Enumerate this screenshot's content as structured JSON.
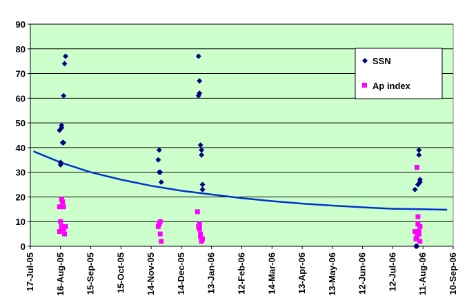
{
  "chart_data": {
    "type": "scatter",
    "title": "",
    "xlabel": "",
    "ylabel": "",
    "xlim": [
      "2005-07-17",
      "2006-09-10"
    ],
    "ylim": [
      0,
      90
    ],
    "y_ticks": [
      0,
      10,
      20,
      30,
      40,
      50,
      60,
      70,
      80,
      90
    ],
    "x_ticks": [
      "2005-07-17",
      "2005-08-16",
      "2005-09-15",
      "2005-10-15",
      "2005-11-14",
      "2005-12-14",
      "2006-01-13",
      "2006-02-12",
      "2006-03-14",
      "2006-04-13",
      "2006-05-13",
      "2006-06-12",
      "2006-07-12",
      "2006-08-11",
      "2006-09-10"
    ],
    "x_tick_labels": [
      "17-Jul-05",
      "16-Aug-05",
      "15-Sep-05",
      "15-Oct-05",
      "14-Nov-05",
      "14-Dec-05",
      "13-Jan-06",
      "12-Feb-06",
      "14-Mar-06",
      "13-Apr-06",
      "13-May-06",
      "12-Jun-06",
      "12-Jul-06",
      "11-Aug-06",
      "10-Sep-06"
    ],
    "grid": true,
    "plot_background": "#ccffcc",
    "legend_position": "top-right",
    "series": [
      {
        "name": "SSN",
        "marker": "diamond",
        "color": "#000080",
        "points": [
          [
            "2005-08-15",
            47
          ],
          [
            "2005-08-16",
            33
          ],
          [
            "2005-08-16",
            34
          ],
          [
            "2005-08-17",
            49
          ],
          [
            "2005-08-17",
            48
          ],
          [
            "2005-08-18",
            42
          ],
          [
            "2005-08-19",
            42
          ],
          [
            "2005-08-19",
            61
          ],
          [
            "2005-08-20",
            74
          ],
          [
            "2005-08-21",
            77
          ],
          [
            "2005-11-21",
            35
          ],
          [
            "2005-11-22",
            30
          ],
          [
            "2005-11-22",
            39
          ],
          [
            "2005-11-23",
            30
          ],
          [
            "2005-11-24",
            26
          ],
          [
            "2005-12-31",
            77
          ],
          [
            "2005-12-31",
            61
          ],
          [
            "2006-01-01",
            67
          ],
          [
            "2006-01-01",
            62
          ],
          [
            "2006-01-02",
            41
          ],
          [
            "2006-01-03",
            37
          ],
          [
            "2006-01-03",
            39
          ],
          [
            "2006-01-04",
            25
          ],
          [
            "2006-01-04",
            23
          ],
          [
            "2006-08-03",
            23
          ],
          [
            "2006-08-04",
            0
          ],
          [
            "2006-08-05",
            0
          ],
          [
            "2006-08-06",
            25
          ],
          [
            "2006-08-07",
            37
          ],
          [
            "2006-08-07",
            39
          ],
          [
            "2006-08-08",
            27
          ],
          [
            "2006-08-08",
            26
          ]
        ]
      },
      {
        "name": "Ap index",
        "marker": "square",
        "color": "#ff00ff",
        "points": [
          [
            "2005-08-15",
            6
          ],
          [
            "2005-08-15",
            16
          ],
          [
            "2005-08-16",
            10
          ],
          [
            "2005-08-17",
            8
          ],
          [
            "2005-08-17",
            19
          ],
          [
            "2005-08-18",
            18
          ],
          [
            "2005-08-19",
            16
          ],
          [
            "2005-08-19",
            7
          ],
          [
            "2005-08-20",
            5
          ],
          [
            "2005-08-21",
            8
          ],
          [
            "2005-11-21",
            8
          ],
          [
            "2005-11-22",
            9
          ],
          [
            "2005-11-23",
            10
          ],
          [
            "2005-11-23",
            5
          ],
          [
            "2005-11-24",
            2
          ],
          [
            "2005-12-30",
            14
          ],
          [
            "2005-12-31",
            8
          ],
          [
            "2006-01-01",
            9
          ],
          [
            "2006-01-01",
            7
          ],
          [
            "2006-01-02",
            5
          ],
          [
            "2006-01-02",
            4
          ],
          [
            "2006-01-03",
            2
          ],
          [
            "2006-01-03",
            3
          ],
          [
            "2006-01-04",
            3
          ],
          [
            "2006-08-03",
            6
          ],
          [
            "2006-08-04",
            3
          ],
          [
            "2006-08-05",
            4
          ],
          [
            "2006-08-05",
            32
          ],
          [
            "2006-08-06",
            12
          ],
          [
            "2006-08-06",
            9
          ],
          [
            "2006-08-07",
            5
          ],
          [
            "2006-08-07",
            6
          ],
          [
            "2006-08-08",
            8
          ],
          [
            "2006-08-08",
            2
          ]
        ]
      }
    ],
    "trendline": {
      "color": "#0033cc",
      "points": [
        [
          "2005-07-20",
          38.5
        ],
        [
          "2005-08-16",
          34
        ],
        [
          "2005-09-15",
          30
        ],
        [
          "2005-10-15",
          27
        ],
        [
          "2005-11-14",
          24.5
        ],
        [
          "2005-12-14",
          22.5
        ],
        [
          "2006-01-13",
          21
        ],
        [
          "2006-02-12",
          19.5
        ],
        [
          "2006-03-14",
          18.3
        ],
        [
          "2006-04-13",
          17.3
        ],
        [
          "2006-05-13",
          16.5
        ],
        [
          "2006-06-12",
          15.8
        ],
        [
          "2006-07-12",
          15.2
        ],
        [
          "2006-08-11",
          15
        ],
        [
          "2006-09-04",
          14.8
        ]
      ]
    }
  }
}
